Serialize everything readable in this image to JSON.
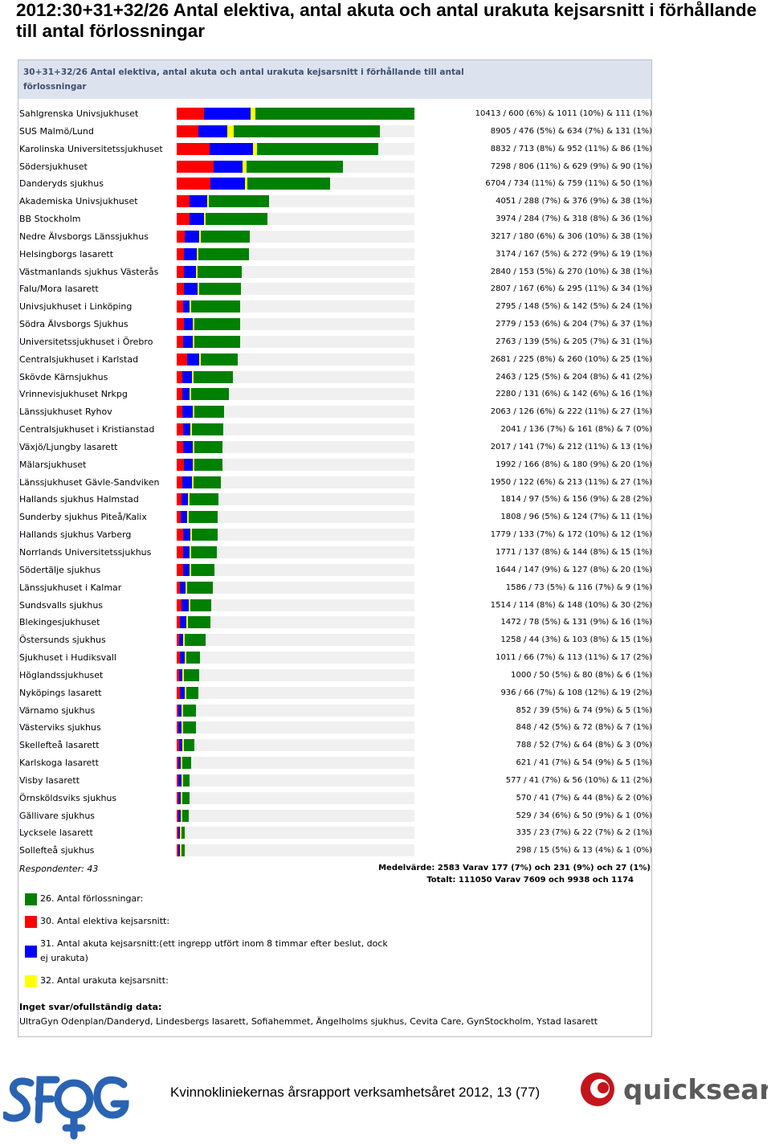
{
  "page": {
    "title": "2012:30+31+32/26 Antal elektiva, antal akuta och antal urakuta kejsarsnitt i förhållande till antal förlossningar",
    "footer": "Kvinnokliniekernas årsrapport verksamhetsåret 2012, 13 (77)"
  },
  "panel": {
    "title": "30+31+32/26 Antal elektiva, antal akuta och antal urakuta kejsarsnitt i förhållande till antal förlossningar",
    "respondents": "Respondenter: 43",
    "mean": "Medelvärde: 2583 Varav 177 (7%) och 231 (9%) och 27 (1%)",
    "total": "Totalt: 111050 Varav 7609 och 9938 och 1174",
    "no_answer_heading": "Inget svar/ofullständig data:",
    "no_answer_list": "UltraGyn Odenplan/Danderyd, Lindesbergs lasarett, Sofiahemmet, Ängelholms sjukhus, Cevita Care, GynStockholm, Ystad lasarett"
  },
  "logos": {
    "left": "SFOG",
    "right": "quicksearch"
  },
  "chart_data": {
    "type": "bar",
    "orientation": "horizontal",
    "stacked": true,
    "colors": {
      "green": "#008000",
      "red": "#ff0000",
      "blue": "#0000ff",
      "yellow": "#ffff00"
    },
    "legend": [
      {
        "label": "26. Antal förlossningar:",
        "color": "#008000"
      },
      {
        "label": "30. Antal elektiva kejsarsnitt:",
        "color": "#ff0000"
      },
      {
        "label": "31. Antal akuta kejsarsnitt:(ett ingrepp utfört inom 8 timmar efter beslut, dock ej urakuta)",
        "color": "#0000ff"
      },
      {
        "label": "32. Antal urakuta kejsarsnitt:",
        "color": "#ffff00"
      }
    ],
    "xmax": 10413,
    "rows": [
      {
        "name": "Sahlgrenska Univsjukhuset",
        "total": 10413,
        "elective": 600,
        "acute": 1011,
        "urgent": 111,
        "label": "10413 / 600 (6%) & 1011 (10%) & 111 (1%)"
      },
      {
        "name": "SUS Malmö/Lund",
        "total": 8905,
        "elective": 476,
        "acute": 634,
        "urgent": 131,
        "label": "8905 / 476 (5%) & 634 (7%) & 131 (1%)"
      },
      {
        "name": "Karolinska Universitetssjukhuset",
        "total": 8832,
        "elective": 713,
        "acute": 952,
        "urgent": 86,
        "label": "8832 / 713 (8%) & 952 (11%) & 86 (1%)"
      },
      {
        "name": "Södersjukhuset",
        "total": 7298,
        "elective": 806,
        "acute": 629,
        "urgent": 90,
        "label": "7298 / 806 (11%) & 629 (9%) & 90 (1%)"
      },
      {
        "name": "Danderyds sjukhus",
        "total": 6704,
        "elective": 734,
        "acute": 759,
        "urgent": 50,
        "label": "6704 / 734 (11%) & 759 (11%) & 50 (1%)"
      },
      {
        "name": "Akademiska Univsjukhuset",
        "total": 4051,
        "elective": 288,
        "acute": 376,
        "urgent": 38,
        "label": "4051 / 288 (7%) & 376 (9%) & 38 (1%)"
      },
      {
        "name": "BB Stockholm",
        "total": 3974,
        "elective": 284,
        "acute": 318,
        "urgent": 36,
        "label": "3974 / 284 (7%) & 318 (8%) & 36 (1%)"
      },
      {
        "name": "Nedre Älvsborgs Länssjukhus",
        "total": 3217,
        "elective": 180,
        "acute": 306,
        "urgent": 38,
        "label": "3217 / 180 (6%) & 306 (10%) & 38 (1%)"
      },
      {
        "name": "Helsingborgs lasarett",
        "total": 3174,
        "elective": 167,
        "acute": 272,
        "urgent": 19,
        "label": "3174 / 167 (5%) & 272 (9%) & 19 (1%)"
      },
      {
        "name": "Västmanlands sjukhus Västerås",
        "total": 2840,
        "elective": 153,
        "acute": 270,
        "urgent": 38,
        "label": "2840 / 153 (5%) & 270 (10%) & 38 (1%)"
      },
      {
        "name": "Falu/Mora lasarett",
        "total": 2807,
        "elective": 167,
        "acute": 295,
        "urgent": 34,
        "label": "2807 / 167 (6%) & 295 (11%) & 34 (1%)"
      },
      {
        "name": "Univsjukhuset i Linköping",
        "total": 2795,
        "elective": 148,
        "acute": 142,
        "urgent": 24,
        "label": "2795 / 148 (5%) & 142 (5%) & 24 (1%)"
      },
      {
        "name": "Södra Älvsborgs Sjukhus",
        "total": 2779,
        "elective": 153,
        "acute": 204,
        "urgent": 37,
        "label": "2779 / 153 (6%) & 204 (7%) & 37 (1%)"
      },
      {
        "name": "Universitetssjukhuset i Örebro",
        "total": 2763,
        "elective": 139,
        "acute": 205,
        "urgent": 31,
        "label": "2763 / 139 (5%) & 205 (7%) & 31 (1%)"
      },
      {
        "name": "Centralsjukhuset i Karlstad",
        "total": 2681,
        "elective": 225,
        "acute": 260,
        "urgent": 25,
        "label": "2681 / 225 (8%) & 260 (10%) & 25 (1%)"
      },
      {
        "name": "Skövde Kärnsjukhus",
        "total": 2463,
        "elective": 125,
        "acute": 204,
        "urgent": 41,
        "label": "2463 / 125 (5%) & 204 (8%) & 41 (2%)"
      },
      {
        "name": "Vrinnevisjukhuset Nrkpg",
        "total": 2280,
        "elective": 131,
        "acute": 142,
        "urgent": 16,
        "label": "2280 / 131 (6%) & 142 (6%) & 16 (1%)"
      },
      {
        "name": "Länssjukhuset Ryhov",
        "total": 2063,
        "elective": 126,
        "acute": 222,
        "urgent": 27,
        "label": "2063 / 126 (6%) & 222 (11%) & 27 (1%)"
      },
      {
        "name": "Centralsjukhuset i Kristianstad",
        "total": 2041,
        "elective": 136,
        "acute": 161,
        "urgent": 7,
        "label": "2041 / 136 (7%) & 161 (8%) & 7 (0%)"
      },
      {
        "name": "Växjö/Ljungby lasarett",
        "total": 2017,
        "elective": 141,
        "acute": 212,
        "urgent": 13,
        "label": "2017 / 141 (7%) & 212 (11%) & 13 (1%)"
      },
      {
        "name": "Mälarsjukhuset",
        "total": 1992,
        "elective": 166,
        "acute": 180,
        "urgent": 20,
        "label": "1992 / 166 (8%) & 180 (9%) & 20 (1%)"
      },
      {
        "name": "Länssjukhuset Gävle-Sandviken",
        "total": 1950,
        "elective": 122,
        "acute": 213,
        "urgent": 27,
        "label": "1950 / 122 (6%) & 213 (11%) & 27 (1%)"
      },
      {
        "name": "Hallands sjukhus Halmstad",
        "total": 1814,
        "elective": 97,
        "acute": 156,
        "urgent": 28,
        "label": "1814 / 97 (5%) & 156 (9%) & 28 (2%)"
      },
      {
        "name": "Sunderby sjukhus Piteå/Kalix",
        "total": 1808,
        "elective": 96,
        "acute": 124,
        "urgent": 11,
        "label": "1808 / 96 (5%) & 124 (7%) & 11 (1%)"
      },
      {
        "name": "Hallands sjukhus Varberg",
        "total": 1779,
        "elective": 133,
        "acute": 172,
        "urgent": 12,
        "label": "1779 / 133 (7%) & 172 (10%) & 12 (1%)"
      },
      {
        "name": "Norrlands Universitetssjukhus",
        "total": 1771,
        "elective": 137,
        "acute": 144,
        "urgent": 15,
        "label": "1771 / 137 (8%) & 144 (8%) & 15 (1%)"
      },
      {
        "name": "Södertälje sjukhus",
        "total": 1644,
        "elective": 147,
        "acute": 127,
        "urgent": 20,
        "label": "1644 / 147 (9%) & 127 (8%) & 20 (1%)"
      },
      {
        "name": "Länssjukhuset i Kalmar",
        "total": 1586,
        "elective": 73,
        "acute": 116,
        "urgent": 9,
        "label": "1586 / 73 (5%) & 116 (7%) & 9 (1%)"
      },
      {
        "name": "Sundsvalls sjukhus",
        "total": 1514,
        "elective": 114,
        "acute": 148,
        "urgent": 30,
        "label": "1514 / 114 (8%) & 148 (10%) & 30 (2%)"
      },
      {
        "name": "Blekingesjukhuset",
        "total": 1472,
        "elective": 78,
        "acute": 131,
        "urgent": 16,
        "label": "1472 / 78 (5%) & 131 (9%) & 16 (1%)"
      },
      {
        "name": "Östersunds sjukhus",
        "total": 1258,
        "elective": 44,
        "acute": 103,
        "urgent": 15,
        "label": "1258 / 44 (3%) & 103 (8%) & 15 (1%)"
      },
      {
        "name": "Sjukhuset i Hudiksvall",
        "total": 1011,
        "elective": 66,
        "acute": 113,
        "urgent": 17,
        "label": "1011 / 66 (7%) & 113 (11%) & 17 (2%)"
      },
      {
        "name": "Höglandssjukhuset",
        "total": 1000,
        "elective": 50,
        "acute": 80,
        "urgent": 6,
        "label": "1000 / 50 (5%) & 80 (8%) & 6 (1%)"
      },
      {
        "name": "Nyköpings lasarett",
        "total": 936,
        "elective": 66,
        "acute": 108,
        "urgent": 19,
        "label": "936 / 66 (7%) & 108 (12%) & 19 (2%)"
      },
      {
        "name": "Värnamo sjukhus",
        "total": 852,
        "elective": 39,
        "acute": 74,
        "urgent": 5,
        "label": "852 / 39 (5%) & 74 (9%) & 5 (1%)"
      },
      {
        "name": "Västerviks sjukhus",
        "total": 848,
        "elective": 42,
        "acute": 72,
        "urgent": 7,
        "label": "848 / 42 (5%) & 72 (8%) & 7 (1%)"
      },
      {
        "name": "Skellefteå lasarett",
        "total": 788,
        "elective": 52,
        "acute": 64,
        "urgent": 3,
        "label": "788 / 52 (7%) & 64 (8%) & 3 (0%)"
      },
      {
        "name": "Karlskoga lasarett",
        "total": 621,
        "elective": 41,
        "acute": 54,
        "urgent": 5,
        "label": "621 / 41 (7%) & 54 (9%) & 5 (1%)"
      },
      {
        "name": "Visby lasarett",
        "total": 577,
        "elective": 41,
        "acute": 56,
        "urgent": 11,
        "label": "577 / 41 (7%) & 56 (10%) & 11 (2%)"
      },
      {
        "name": "Örnsköldsviks sjukhus",
        "total": 570,
        "elective": 41,
        "acute": 44,
        "urgent": 2,
        "label": "570 / 41 (7%) & 44 (8%) & 2 (0%)"
      },
      {
        "name": "Gällivare sjukhus",
        "total": 529,
        "elective": 34,
        "acute": 50,
        "urgent": 1,
        "label": "529 / 34 (6%) & 50 (9%) & 1 (0%)"
      },
      {
        "name": "Lycksele lasarett",
        "total": 335,
        "elective": 23,
        "acute": 22,
        "urgent": 2,
        "label": "335 / 23 (7%) & 22 (7%) & 2 (1%)"
      },
      {
        "name": "Sollefteå sjukhus",
        "total": 298,
        "elective": 15,
        "acute": 13,
        "urgent": 1,
        "label": "298 / 15 (5%) & 13 (4%) & 1 (0%)"
      }
    ]
  }
}
